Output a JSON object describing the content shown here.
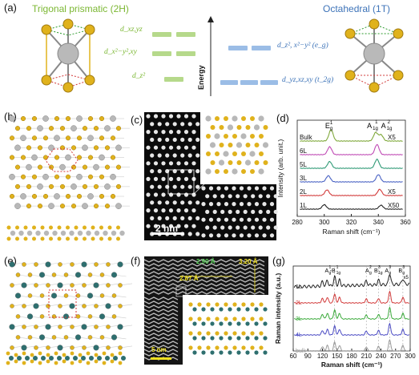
{
  "panels": {
    "a": {
      "label": "(a)",
      "left_title": "Trigonal prismatic (2H)",
      "right_title": "Octahedral (1T)",
      "left_levels": [
        "d_xz,yz",
        "d_x²−y²,xy",
        "d_z²"
      ],
      "right_levels": [
        "d_z², x²−y² (e_g)",
        "d_yz,xz,xy (t_2g)"
      ],
      "energy_label": "Energy"
    },
    "b": {
      "label": "(b)"
    },
    "c": {
      "label": "(c)",
      "scalebar": "2 nm"
    },
    "d": {
      "label": "(d)"
    },
    "e": {
      "label": "(e)"
    },
    "f": {
      "label": "(f)",
      "annotations": [
        "2.90 Å",
        "3.20 Å",
        "2.87 Å",
        "5 nm"
      ]
    },
    "g": {
      "label": "(g)"
    }
  },
  "colors": {
    "green": "#7bb732",
    "blue": "#3d73b8",
    "gold": "#e0b21c",
    "silver": "#b8b8b8",
    "teal": "#2e6f6f"
  },
  "chart_data": [
    {
      "type": "line",
      "panel": "d",
      "xlabel": "Raman shift (cm⁻¹)",
      "ylabel": "Intensity (arb. unit.)",
      "xlim": [
        280,
        360
      ],
      "xticks": [
        280,
        300,
        320,
        340,
        360
      ],
      "peak_labels": [
        "E",
        "g",
        "1",
        "A",
        "1g",
        "1",
        "A",
        "1g",
        "2"
      ],
      "series": [
        {
          "name": "Bulk",
          "color": "#7fa83a",
          "note": "",
          "peaks": [
            [
              305,
              1.0
            ],
            [
              338,
              0.75
            ],
            [
              342,
              0.55
            ]
          ]
        },
        {
          "name": "6L",
          "color": "#c04bb5",
          "note": "",
          "peaks": [
            [
              304,
              0.7
            ],
            [
              339,
              0.9
            ]
          ]
        },
        {
          "name": "5L",
          "color": "#2f9a76",
          "note": "",
          "peaks": [
            [
              304,
              0.6
            ],
            [
              339,
              0.8
            ]
          ]
        },
        {
          "name": "3L",
          "color": "#4a63c4",
          "note": "",
          "peaks": [
            [
              303,
              0.55
            ],
            [
              340,
              0.65
            ]
          ]
        },
        {
          "name": "2L",
          "color": "#d23a3a",
          "note": "X5",
          "peaks": [
            [
              302,
              0.5
            ],
            [
              341,
              0.55
            ]
          ]
        },
        {
          "name": "1L",
          "color": "#222222",
          "note": "X50",
          "peaks": [
            [
              300,
              0.4
            ],
            [
              342,
              0.35
            ]
          ]
        }
      ],
      "top_note": "X5"
    },
    {
      "type": "line",
      "panel": "g",
      "xlabel": "Raman shift (cm⁻¹)",
      "ylabel": "Raman intensity (a.u.)",
      "xlim": [
        60,
        300
      ],
      "xticks": [
        60,
        90,
        120,
        150,
        180,
        210,
        240,
        270,
        300
      ],
      "peak_labels": [
        "A",
        "g",
        "1",
        "-B",
        "1g",
        "1",
        "A",
        "g",
        "2",
        "B",
        "1g",
        "3",
        "A",
        "g",
        "3",
        "B",
        "g",
        "3"
      ],
      "series": [
        {
          "name": "1L",
          "color": "#222222"
        },
        {
          "name": "2L",
          "color": "#d23a3a"
        },
        {
          "name": "3L",
          "color": "#3aaa3a"
        },
        {
          "name": "4L",
          "color": "#4a4ac4"
        },
        {
          "name": "bulk",
          "color": "#999999"
        }
      ],
      "x5_note": "x5"
    }
  ]
}
